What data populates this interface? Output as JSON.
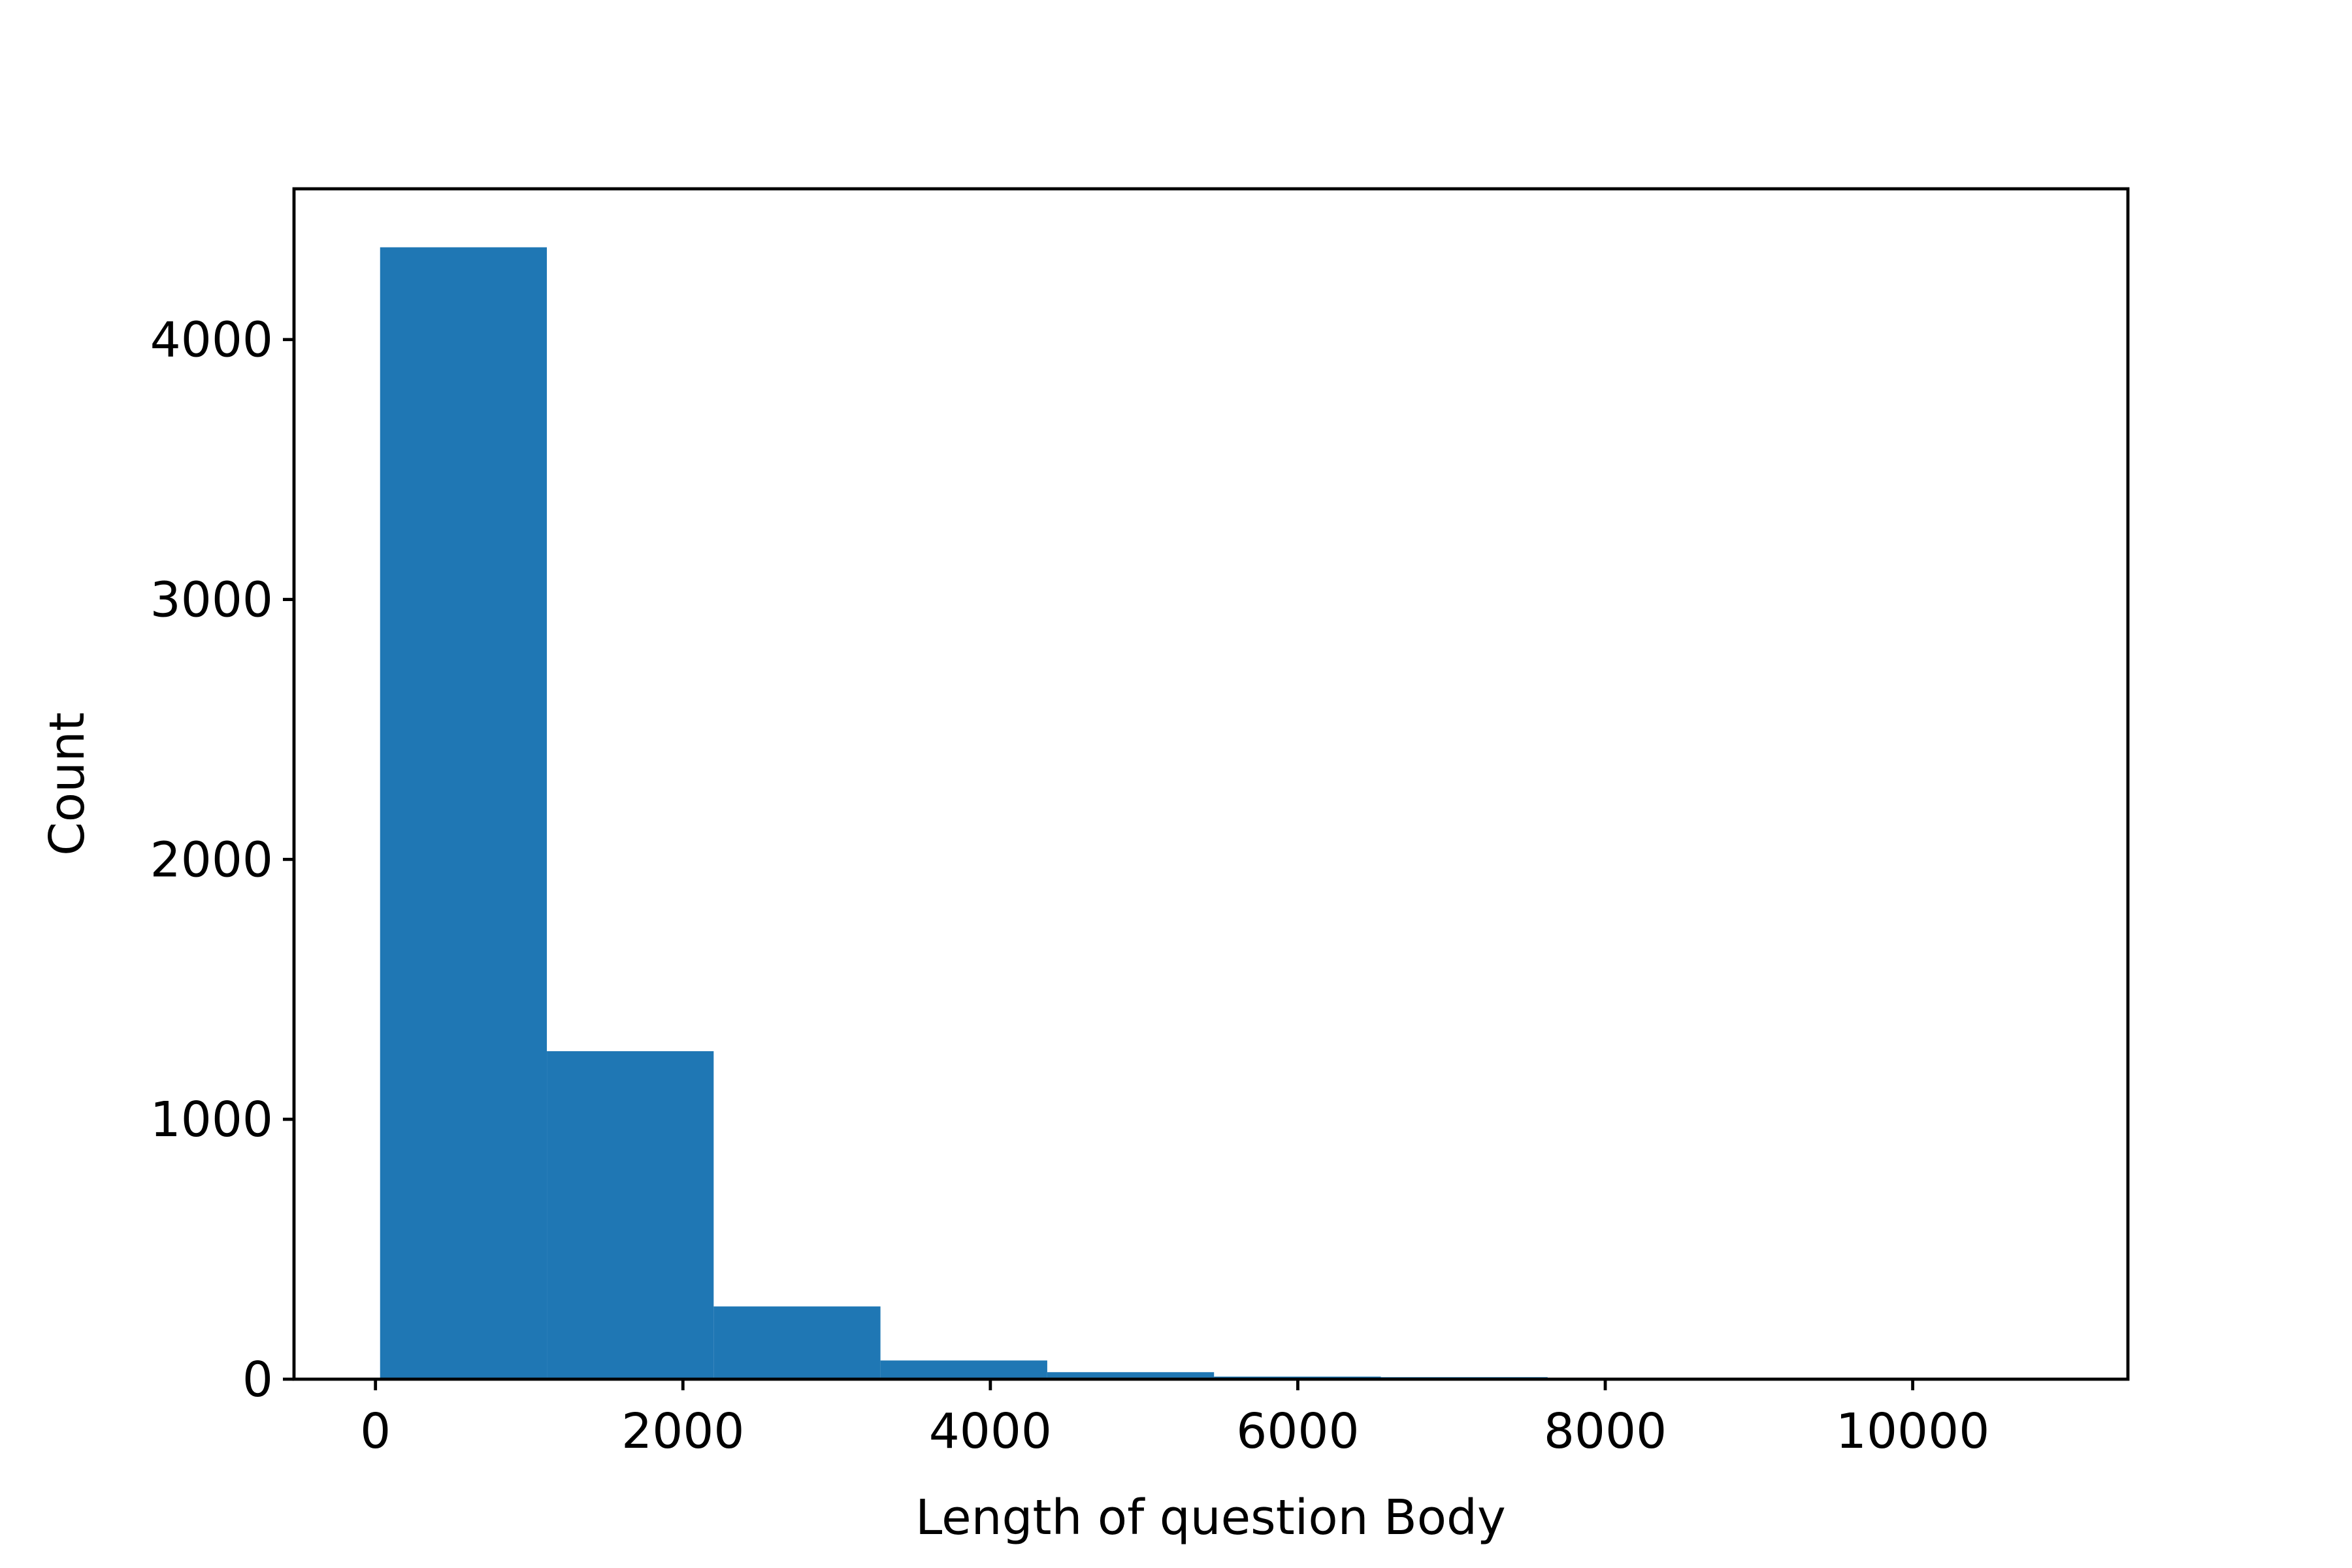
{
  "chart_data": {
    "type": "bar",
    "subtype": "histogram",
    "xlabel": "Length of question Body",
    "ylabel": "Count",
    "xlim": [
      -530,
      11400
    ],
    "ylim": [
      0,
      4580
    ],
    "xticks": [
      0,
      2000,
      4000,
      6000,
      8000,
      10000
    ],
    "yticks": [
      0,
      1000,
      2000,
      3000,
      4000
    ],
    "bins": [
      {
        "start": 30,
        "end": 1115,
        "count": 4355
      },
      {
        "start": 1115,
        "end": 2200,
        "count": 1262
      },
      {
        "start": 2200,
        "end": 3285,
        "count": 280
      },
      {
        "start": 3285,
        "end": 4370,
        "count": 72
      },
      {
        "start": 4370,
        "end": 5455,
        "count": 27
      },
      {
        "start": 5455,
        "end": 6540,
        "count": 10
      },
      {
        "start": 6540,
        "end": 7625,
        "count": 8
      },
      {
        "start": 7625,
        "end": 8710,
        "count": 2
      },
      {
        "start": 8710,
        "end": 9795,
        "count": 1
      },
      {
        "start": 9795,
        "end": 10880,
        "count": 1
      }
    ],
    "bar_color": "#1f77b4",
    "grid": false,
    "legend": "none"
  }
}
